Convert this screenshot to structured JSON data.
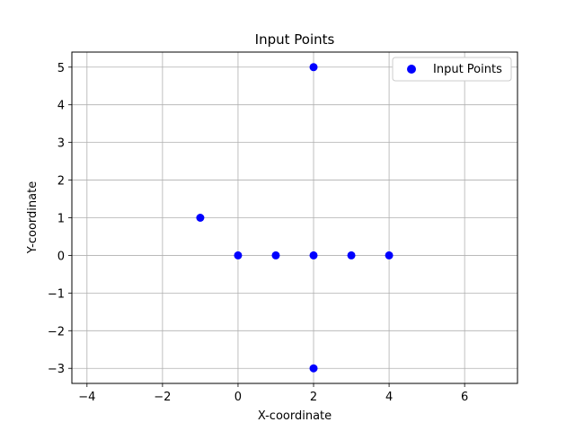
{
  "chart_data": {
    "type": "scatter",
    "title": "Input Points",
    "xlabel": "X-coordinate",
    "ylabel": "Y-coordinate",
    "xlim": [
      -4.4,
      7.4
    ],
    "ylim": [
      -3.4,
      5.4
    ],
    "xticks": [
      -4,
      -2,
      0,
      2,
      4,
      6
    ],
    "yticks": [
      -3,
      -2,
      -1,
      0,
      1,
      2,
      3,
      4,
      5
    ],
    "xtick_labels": [
      "−4",
      "−2",
      "0",
      "2",
      "4",
      "6"
    ],
    "ytick_labels": [
      "−3",
      "−2",
      "−1",
      "0",
      "1",
      "2",
      "3",
      "4",
      "5"
    ],
    "grid": true,
    "legend_position": "top-right",
    "series": [
      {
        "name": "Input Points",
        "color": "#0000ff",
        "points": [
          {
            "x": 0,
            "y": 0
          },
          {
            "x": 1,
            "y": 0
          },
          {
            "x": 2,
            "y": 0
          },
          {
            "x": 3,
            "y": 0
          },
          {
            "x": 4,
            "y": 0
          },
          {
            "x": 2,
            "y": 5
          },
          {
            "x": 2,
            "y": -3
          },
          {
            "x": -1,
            "y": 1
          }
        ]
      }
    ]
  }
}
